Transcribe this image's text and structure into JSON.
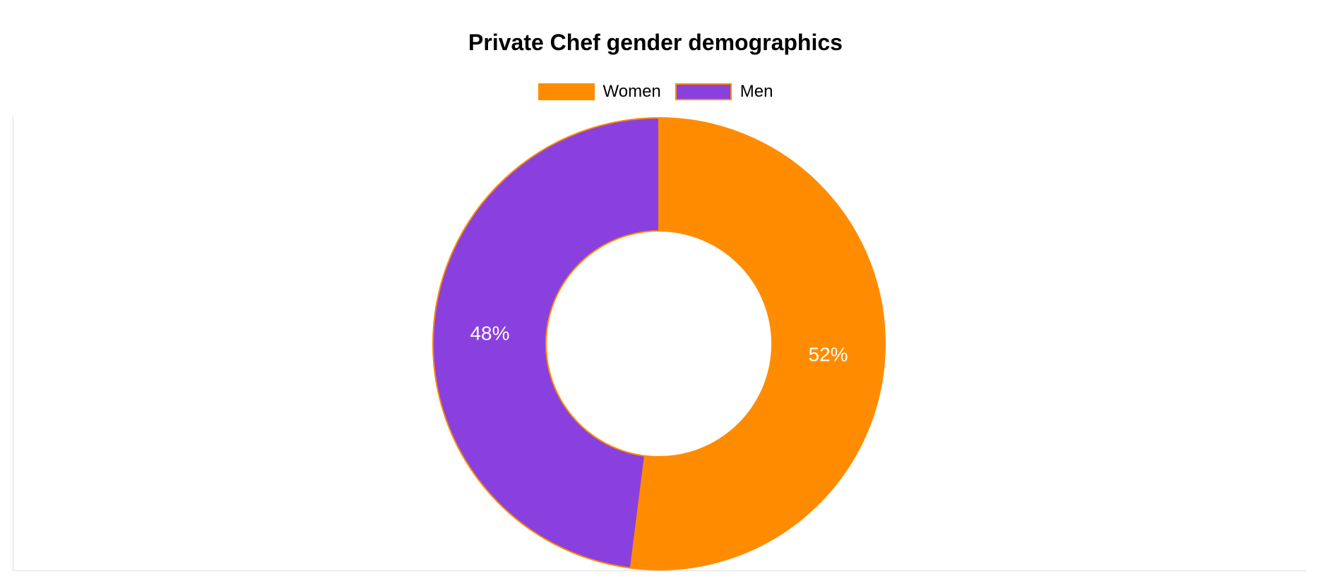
{
  "chart_data": {
    "type": "pie",
    "title": "Private Chef gender demographics",
    "categories": [
      "Women",
      "Men"
    ],
    "values": [
      52,
      48
    ],
    "value_labels": [
      "52%",
      "48%"
    ],
    "colors": [
      "#ff8c00",
      "#8a40de"
    ],
    "border_color": "#ff8c00",
    "legend": "top-center",
    "donut": true
  }
}
